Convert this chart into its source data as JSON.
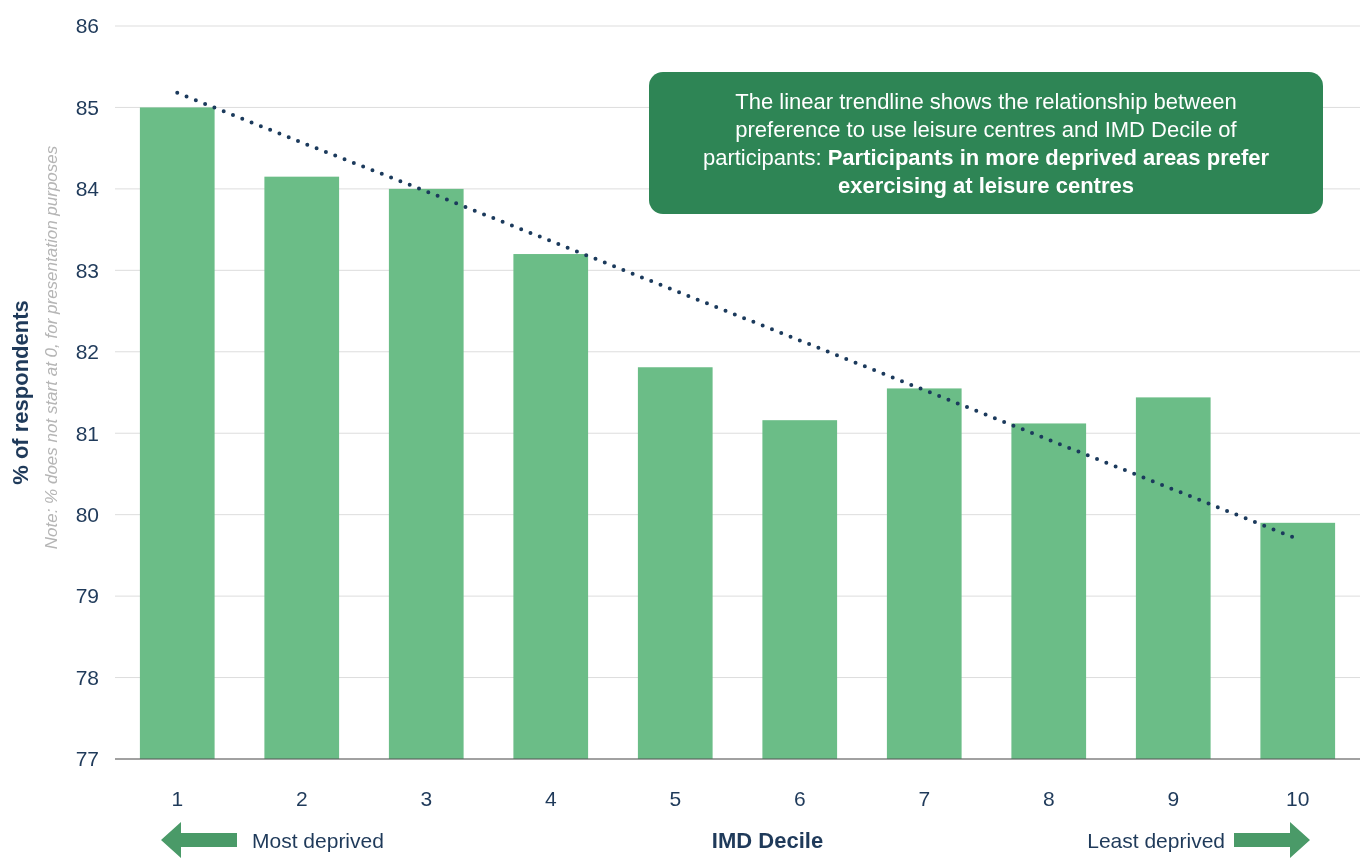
{
  "chart_data": {
    "type": "bar",
    "xlabel": "IMD Decile",
    "ylabel": "% of respondents",
    "categories": [
      "1",
      "2",
      "3",
      "4",
      "5",
      "6",
      "7",
      "8",
      "9",
      "10"
    ],
    "series": [
      {
        "color": "#6bbd87",
        "values": [
          85.0,
          84.15,
          84.0,
          83.2,
          81.81,
          81.16,
          81.55,
          81.12,
          81.44,
          79.9
        ]
      },
      {
        "type": "line",
        "color": "#1b3a5c",
        "line_style": "dotted",
        "values": [
          85.18,
          84.57,
          83.97,
          83.36,
          82.75,
          82.14,
          81.53,
          80.92,
          80.31,
          79.7
        ]
      }
    ],
    "ylim": [
      77,
      86
    ],
    "yticks": [
      77,
      78,
      79,
      80,
      81,
      82,
      83,
      84,
      85,
      86
    ],
    "grid": "y",
    "annotations": [
      "The linear trendline shows the relationship between preference to use leisure centres and IMD Decile of participants: ",
      "Participants in more deprived areas prefer exercising at leisure centres",
      "Note: % does not start at 0, for presentation purposes",
      "Most deprived",
      "Least deprived"
    ]
  }
}
